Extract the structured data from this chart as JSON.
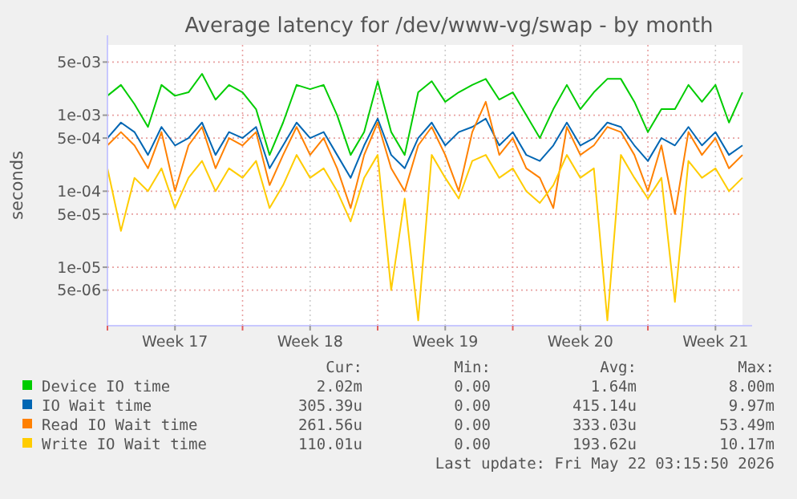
{
  "chart_data": {
    "type": "line",
    "title": "Average latency for /dev/www-vg/swap - by month",
    "ylabel": "seconds",
    "log": true,
    "grid": true,
    "legend": "bottom",
    "marker": "none",
    "line_style": "solid",
    "xlim": [
      "2026-04-20",
      "2026-05-22T21:36"
    ],
    "xticks": [
      {
        "value": "2026-04-20",
        "label": null
      },
      {
        "value": "2026-04-23T12:00",
        "label": "Week 17"
      },
      {
        "value": "2026-04-27",
        "label": null
      },
      {
        "value": "2026-04-30T12:00",
        "label": "Week 18"
      },
      {
        "value": "2026-05-04",
        "label": null
      },
      {
        "value": "2026-05-07T12:00",
        "label": "Week 19"
      },
      {
        "value": "2026-05-11",
        "label": null
      },
      {
        "value": "2026-05-14T12:00",
        "label": "Week 20"
      },
      {
        "value": "2026-05-18",
        "label": null
      },
      {
        "value": "2026-05-21T12:00",
        "label": "Week 21"
      }
    ],
    "ylim": [
      1.7e-06,
      0.0084
    ],
    "yticks": [
      {
        "value": 5e-06,
        "label": "5e-06"
      },
      {
        "value": 1e-05,
        "label": "1e-05"
      },
      {
        "value": 5e-05,
        "label": "5e-05"
      },
      {
        "value": 0.0001,
        "label": "1e-04"
      },
      {
        "value": 0.0005,
        "label": "5e-04"
      },
      {
        "value": 0.001,
        "label": "1e-03"
      },
      {
        "value": 0.005,
        "label": "5e-03"
      }
    ],
    "x": [
      "2026-04-20T00:00",
      "2026-04-20T16:48",
      "2026-04-21T09:36",
      "2026-04-22T02:24",
      "2026-04-22T19:12",
      "2026-04-23T12:00",
      "2026-04-24T04:48",
      "2026-04-24T21:36",
      "2026-04-25T14:24",
      "2026-04-26T07:12",
      "2026-04-27T00:00",
      "2026-04-27T16:48",
      "2026-04-28T09:36",
      "2026-04-29T02:24",
      "2026-04-29T19:12",
      "2026-04-30T12:00",
      "2026-05-01T04:48",
      "2026-05-01T21:36",
      "2026-05-02T14:24",
      "2026-05-03T07:12",
      "2026-05-04T00:00",
      "2026-05-04T16:48",
      "2026-05-05T09:36",
      "2026-05-06T02:24",
      "2026-05-06T19:12",
      "2026-05-07T12:00",
      "2026-05-08T04:48",
      "2026-05-08T21:36",
      "2026-05-09T14:24",
      "2026-05-10T07:12",
      "2026-05-11T00:00",
      "2026-05-11T16:48",
      "2026-05-12T09:36",
      "2026-05-13T02:24",
      "2026-05-13T19:12",
      "2026-05-14T12:00",
      "2026-05-15T04:48",
      "2026-05-15T21:36",
      "2026-05-16T14:24",
      "2026-05-17T07:12",
      "2026-05-18T00:00",
      "2026-05-18T16:48",
      "2026-05-19T09:36",
      "2026-05-20T02:24",
      "2026-05-20T19:12",
      "2026-05-21T12:00",
      "2026-05-22T04:48",
      "2026-05-22T21:36"
    ],
    "series": [
      {
        "name": "Device IO time",
        "color": "#00cc00",
        "values": [
          0.0018,
          0.0025,
          0.0014,
          0.0007,
          0.0025,
          0.0018,
          0.002,
          0.0035,
          0.0016,
          0.0025,
          0.002,
          0.0012,
          0.0003,
          0.0008,
          0.0025,
          0.0022,
          0.0025,
          0.001,
          0.0003,
          0.0006,
          0.0028,
          0.0006,
          0.0003,
          0.002,
          0.0028,
          0.0015,
          0.002,
          0.0025,
          0.003,
          0.0016,
          0.002,
          0.001,
          0.0005,
          0.0012,
          0.0025,
          0.0012,
          0.002,
          0.003,
          0.003,
          0.0015,
          0.0006,
          0.0012,
          0.0012,
          0.0025,
          0.0015,
          0.0025,
          0.0008,
          0.002
        ]
      },
      {
        "name": "IO Wait time",
        "color": "#0066b3",
        "values": [
          0.0005,
          0.0008,
          0.0006,
          0.0003,
          0.0007,
          0.0004,
          0.0005,
          0.0008,
          0.0003,
          0.0006,
          0.0005,
          0.0007,
          0.0002,
          0.0004,
          0.0008,
          0.0005,
          0.0006,
          0.0003,
          0.00015,
          0.0004,
          0.0009,
          0.0003,
          0.0002,
          0.0005,
          0.0008,
          0.0004,
          0.0006,
          0.0007,
          0.0009,
          0.0004,
          0.0006,
          0.0003,
          0.00025,
          0.0004,
          0.0008,
          0.0004,
          0.0005,
          0.0008,
          0.0007,
          0.0004,
          0.00025,
          0.0005,
          0.0004,
          0.0007,
          0.0004,
          0.0006,
          0.0003,
          0.0004
        ]
      },
      {
        "name": "Read IO Wait time",
        "color": "#ff8000",
        "values": [
          0.0004,
          0.0006,
          0.0004,
          0.0002,
          0.0006,
          0.0001,
          0.0004,
          0.0007,
          0.0002,
          0.0005,
          0.0004,
          0.0006,
          0.00012,
          0.0003,
          0.0007,
          0.0003,
          0.0005,
          0.0002,
          6e-05,
          0.0003,
          0.0008,
          0.0002,
          0.0001,
          0.0004,
          0.0007,
          0.0003,
          0.0001,
          0.0006,
          0.0015,
          0.0003,
          0.0005,
          0.0002,
          0.00015,
          6e-05,
          0.0007,
          0.0003,
          0.0004,
          0.0007,
          0.0006,
          0.0003,
          0.0001,
          0.0004,
          5e-05,
          0.0006,
          0.0003,
          0.0005,
          0.0002,
          0.0003
        ]
      },
      {
        "name": "Write IO Wait time",
        "color": "#ffcc00",
        "values": [
          0.0002,
          3e-05,
          0.00015,
          0.0001,
          0.0002,
          6e-05,
          0.00015,
          0.00025,
          0.0001,
          0.0002,
          0.00015,
          0.00025,
          6e-05,
          0.00012,
          0.0003,
          0.00015,
          0.0002,
          0.0001,
          4e-05,
          0.00015,
          0.0003,
          5e-06,
          8e-05,
          2e-06,
          0.0003,
          0.00015,
          8e-05,
          0.00025,
          0.0003,
          0.00015,
          0.0002,
          0.0001,
          7e-05,
          0.00012,
          0.0003,
          0.00015,
          0.0002,
          2e-06,
          0.0003,
          0.00015,
          8e-05,
          0.00015,
          3.5e-06,
          0.00025,
          0.00015,
          0.0002,
          0.0001,
          0.00015
        ]
      }
    ],
    "annotations": [
      "Cur:",
      "Min:",
      "Avg:",
      "Max:",
      "2.02m",
      "0.00",
      "1.64m",
      "8.00m",
      "305.39u",
      "0.00",
      "415.14u",
      "9.97m",
      "261.56u",
      "0.00",
      "333.03u",
      "53.49m",
      "110.01u",
      "0.00",
      "193.62u",
      "10.17m",
      "Last update: Fri May 22 03:15:50 2026"
    ]
  }
}
